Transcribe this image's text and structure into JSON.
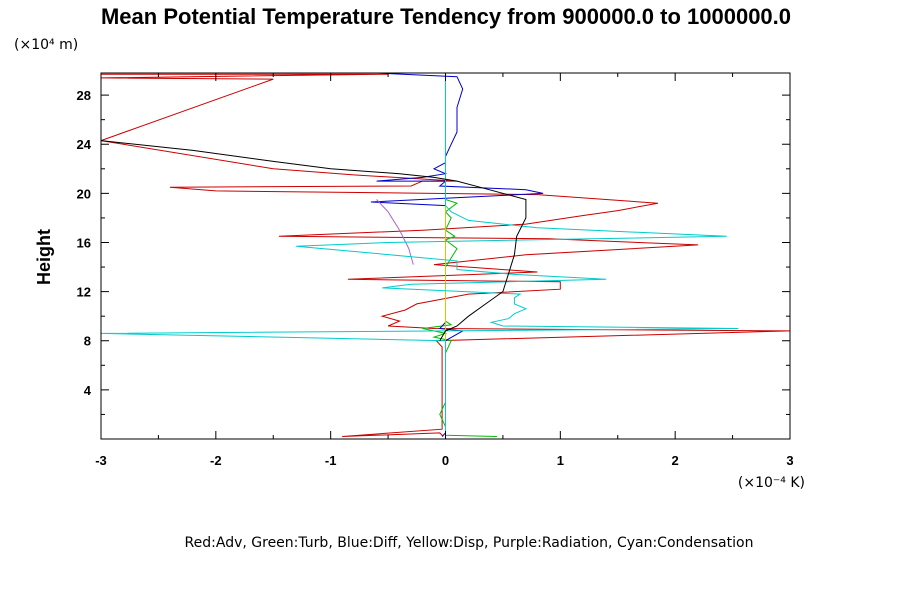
{
  "chart_data": {
    "type": "line",
    "title": "Mean Potential Temperature Tendency from 900000.0 to 1000000.0",
    "ylabel": "Height",
    "x_unit_label": "(×10⁻⁴ K)",
    "y_unit_label": "(×10⁴ m)",
    "legend_text": "Red:Adv, Green:Turb, Blue:Diff, Yellow:Disp, Purple:Radiation, Cyan:Condensation",
    "xlim": [
      -3,
      3
    ],
    "ylim": [
      0,
      29.8
    ],
    "x_ticks": [
      -3,
      -2,
      -1,
      0,
      1,
      2,
      3
    ],
    "x_tick_labels": [
      "-3",
      "-2",
      "-1",
      "0",
      "1",
      "2",
      "3"
    ],
    "y_ticks": [
      4,
      8,
      12,
      16,
      20,
      24,
      28
    ],
    "y_tick_labels": [
      "4",
      "8",
      "12",
      "16",
      "20",
      "24",
      "28"
    ],
    "grid": false,
    "series": [
      {
        "name": "Adv",
        "color": "#cc0000",
        "points": [
          [
            -0.02,
            0.2
          ],
          [
            -0.05,
            0.5
          ],
          [
            -0.9,
            0.2
          ],
          [
            -0.03,
            0.8
          ],
          [
            -0.03,
            3.0
          ],
          [
            -0.03,
            5.5
          ],
          [
            -0.03,
            7.5
          ],
          [
            -0.08,
            8.0
          ],
          [
            3.0,
            8.8
          ],
          [
            -0.1,
            9.0
          ],
          [
            -0.5,
            9.2
          ],
          [
            -0.4,
            9.6
          ],
          [
            -0.55,
            10.0
          ],
          [
            -0.35,
            10.5
          ],
          [
            -0.25,
            11.0
          ],
          [
            0.2,
            11.8
          ],
          [
            1.0,
            12.2
          ],
          [
            1.0,
            12.8
          ],
          [
            -0.85,
            13.0
          ],
          [
            0.8,
            13.6
          ],
          [
            -0.1,
            14.2
          ],
          [
            0.7,
            15.0
          ],
          [
            2.2,
            15.8
          ],
          [
            0.9,
            16.3
          ],
          [
            -1.45,
            16.5
          ],
          [
            -0.2,
            17.0
          ],
          [
            0.7,
            17.5
          ],
          [
            1.2,
            18.2
          ],
          [
            1.5,
            18.6
          ],
          [
            1.85,
            19.2
          ],
          [
            0.8,
            19.9
          ],
          [
            -2.0,
            20.2
          ],
          [
            -2.4,
            20.5
          ],
          [
            -0.3,
            20.6
          ],
          [
            -0.2,
            21.0
          ],
          [
            0.1,
            21.0
          ],
          [
            -0.8,
            21.5
          ],
          [
            -1.5,
            22.0
          ],
          [
            -3.0,
            24.3
          ],
          [
            -1.5,
            29.3
          ],
          [
            -3.0,
            29.4
          ],
          [
            -0.5,
            29.7
          ],
          [
            -3.0,
            29.7
          ]
        ]
      },
      {
        "name": "Turb",
        "color": "#00bb00",
        "points": [
          [
            0.45,
            0.2
          ],
          [
            0.0,
            0.3
          ],
          [
            0.0,
            1.0
          ],
          [
            -0.05,
            2.0
          ],
          [
            0.0,
            3.0
          ],
          [
            0.0,
            5.0
          ],
          [
            0.0,
            7.0
          ],
          [
            0.05,
            8.0
          ],
          [
            -0.1,
            8.3
          ],
          [
            0.0,
            8.6
          ],
          [
            -0.2,
            9.0
          ],
          [
            0.05,
            9.3
          ],
          [
            0.0,
            9.6
          ],
          [
            0.0,
            11.0
          ],
          [
            0.0,
            14.0
          ],
          [
            0.1,
            15.5
          ],
          [
            0.0,
            16.2
          ],
          [
            0.08,
            16.5
          ],
          [
            0.0,
            17.0
          ],
          [
            0.05,
            18.0
          ],
          [
            0.0,
            18.5
          ],
          [
            0.1,
            19.2
          ],
          [
            0.0,
            19.5
          ],
          [
            0.0,
            20.0
          ]
        ]
      },
      {
        "name": "Diff",
        "color": "#0000cc",
        "points": [
          [
            -0.03,
            0.2
          ],
          [
            0.0,
            0.5
          ],
          [
            0.0,
            5.0
          ],
          [
            0.0,
            8.0
          ],
          [
            0.15,
            8.8
          ],
          [
            -0.05,
            9.0
          ],
          [
            0.0,
            9.5
          ],
          [
            0.0,
            12.0
          ],
          [
            0.0,
            15.0
          ],
          [
            0.0,
            17.0
          ],
          [
            0.0,
            19.0
          ],
          [
            -0.65,
            19.3
          ],
          [
            0.0,
            19.6
          ],
          [
            0.85,
            20.0
          ],
          [
            0.7,
            20.3
          ],
          [
            -0.05,
            20.6
          ],
          [
            0.0,
            21.0
          ],
          [
            -0.6,
            21.0
          ],
          [
            -0.2,
            21.3
          ],
          [
            0.0,
            21.6
          ],
          [
            -0.1,
            22.0
          ],
          [
            0.0,
            22.5
          ],
          [
            0.0,
            23.0
          ],
          [
            0.05,
            24.0
          ],
          [
            0.1,
            25.0
          ],
          [
            0.1,
            27.0
          ],
          [
            0.15,
            28.5
          ],
          [
            0.1,
            29.5
          ],
          [
            -0.6,
            29.8
          ]
        ]
      },
      {
        "name": "Disp",
        "color": "#cccc00",
        "points": [
          [
            0.0,
            0.2
          ],
          [
            0.0,
            2.0
          ],
          [
            0.0,
            5.0
          ],
          [
            0.0,
            8.0
          ],
          [
            0.0,
            11.0
          ],
          [
            0.0,
            14.0
          ],
          [
            0.0,
            17.0
          ],
          [
            0.0,
            20.0
          ]
        ]
      },
      {
        "name": "Radiation",
        "color": "#aa66cc",
        "points": [
          [
            -0.6,
            19.5
          ],
          [
            -0.5,
            18.5
          ],
          [
            -0.4,
            17.0
          ],
          [
            -0.32,
            15.5
          ],
          [
            -0.28,
            14.2
          ]
        ]
      },
      {
        "name": "Condensation",
        "color": "#00cccc",
        "points": [
          [
            0.0,
            0.2
          ],
          [
            0.0,
            2.0
          ],
          [
            0.0,
            5.0
          ],
          [
            0.0,
            8.0
          ],
          [
            -3.0,
            8.6
          ],
          [
            0.0,
            8.8
          ],
          [
            2.55,
            9.0
          ],
          [
            0.5,
            9.2
          ],
          [
            0.4,
            9.5
          ],
          [
            0.55,
            9.8
          ],
          [
            0.6,
            10.2
          ],
          [
            0.7,
            10.6
          ],
          [
            0.6,
            11.0
          ],
          [
            0.6,
            11.5
          ],
          [
            0.65,
            11.8
          ],
          [
            -0.55,
            12.3
          ],
          [
            -0.3,
            12.6
          ],
          [
            1.4,
            13.0
          ],
          [
            0.6,
            13.4
          ],
          [
            0.1,
            13.8
          ],
          [
            0.1,
            14.5
          ],
          [
            -1.3,
            15.7
          ],
          [
            -0.5,
            16.0
          ],
          [
            2.45,
            16.5
          ],
          [
            0.8,
            17.2
          ],
          [
            0.2,
            17.8
          ],
          [
            0.05,
            18.5
          ],
          [
            0.0,
            19.0
          ],
          [
            0.0,
            23.0
          ],
          [
            0.0,
            29.8
          ]
        ]
      },
      {
        "name": "",
        "color": "#000000",
        "points": [
          [
            -0.05,
            8.0
          ],
          [
            0.0,
            8.8
          ],
          [
            0.1,
            9.2
          ],
          [
            0.2,
            10.0
          ],
          [
            0.35,
            11.0
          ],
          [
            0.5,
            12.0
          ],
          [
            0.55,
            13.5
          ],
          [
            0.6,
            15.0
          ],
          [
            0.62,
            16.5
          ],
          [
            0.7,
            18.0
          ],
          [
            0.7,
            19.5
          ],
          [
            0.3,
            20.5
          ],
          [
            0.1,
            21.0
          ],
          [
            -0.1,
            21.3
          ],
          [
            -0.4,
            21.6
          ],
          [
            -1.0,
            22.0
          ],
          [
            -1.5,
            22.6
          ],
          [
            -2.2,
            23.5
          ],
          [
            -3.0,
            24.3
          ]
        ]
      }
    ]
  }
}
